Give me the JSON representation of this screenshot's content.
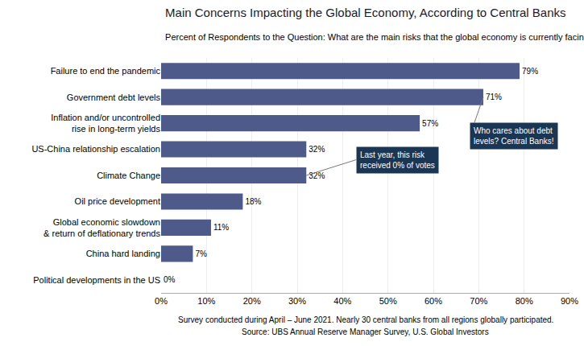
{
  "chart_data": {
    "type": "bar",
    "orientation": "horizontal",
    "title": "Main Concerns Impacting the Global Economy, According to Central Banks",
    "subtitle": "Percent of Respondents to the Question: What are the main risks that the global economy is currently facing?",
    "categories": [
      "Failure to end the pandemic",
      "Government debt levels",
      "Inflation and/or uncontrolled\nrise in long-term yields",
      "US-China relationship escalation",
      "Climate Change",
      "Oil price development",
      "Global economic slowdown\n& return of deflationary trends",
      "China hard landing",
      "Political developments in the US"
    ],
    "values": [
      79,
      71,
      57,
      32,
      32,
      18,
      11,
      7,
      0
    ],
    "value_labels": [
      "79%",
      "71%",
      "57%",
      "32%",
      "32%",
      "18%",
      "11%",
      "7%",
      "0%"
    ],
    "data_labels": true,
    "color": "#4d5a8a",
    "xlim": [
      0,
      90
    ],
    "xticks": [
      {
        "value": 0,
        "label": "0%"
      },
      {
        "value": 10,
        "label": "10%"
      },
      {
        "value": 20,
        "label": "20%"
      },
      {
        "value": 30,
        "label": "30%"
      },
      {
        "value": 40,
        "label": "40%"
      },
      {
        "value": 50,
        "label": "50%"
      },
      {
        "value": 60,
        "label": "60%"
      },
      {
        "value": 70,
        "label": "70%"
      },
      {
        "value": 80,
        "label": "80%"
      },
      {
        "value": 90,
        "label": "90%"
      }
    ],
    "grid": true,
    "annotations": [
      {
        "text": "Last year, this risk\nreceived 0% of votes",
        "category": "Climate Change",
        "color": "#1a3655"
      },
      {
        "text": "Who cares about debt\nlevels? Central Banks!",
        "category": "Government debt levels",
        "color": "#1a3655"
      }
    ],
    "footer": [
      "Survey conducted during April – June 2021. Nearly 30 central banks from all regions globally participated.",
      "Source: UBS Annual Reserve Manager Survey, U.S. Global Investors"
    ]
  }
}
